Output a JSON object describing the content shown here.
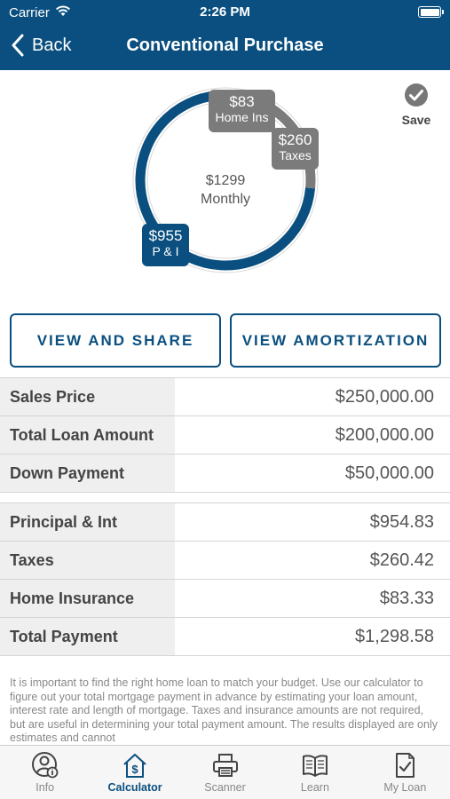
{
  "status_bar": {
    "carrier": "Carrier",
    "time": "2:26 PM"
  },
  "nav": {
    "back_label": "Back",
    "title": "Conventional Purchase"
  },
  "save": {
    "label": "Save"
  },
  "chart_data": {
    "type": "pie",
    "center": {
      "amount": "$1299",
      "label": "Monthly"
    },
    "slices": [
      {
        "label": "P & I",
        "amount": "$955",
        "value": 954.83,
        "color": "#0a4f7f"
      },
      {
        "label": "Taxes",
        "amount": "$260",
        "value": 260.42,
        "color": "#7b7b7b"
      },
      {
        "label": "Home Ins",
        "amount": "$83",
        "value": 83.33,
        "color": "#7b7b7b"
      }
    ]
  },
  "buttons": {
    "view_share": "VIEW AND SHARE",
    "view_amortization": "VIEW AMORTIZATION"
  },
  "loan_table": [
    {
      "label": "Sales Price",
      "value": "$250,000.00"
    },
    {
      "label": "Total Loan Amount",
      "value": "$200,000.00"
    },
    {
      "label": "Down Payment",
      "value": "$50,000.00"
    }
  ],
  "payment_table": [
    {
      "label": "Principal & Int",
      "value": "$954.83"
    },
    {
      "label": "Taxes",
      "value": "$260.42"
    },
    {
      "label": "Home Insurance",
      "value": "$83.33"
    },
    {
      "label": "Total Payment",
      "value": "$1,298.58"
    }
  ],
  "disclaimer": "It is important to find the right home loan to match your budget. Use our calculator to figure out your total mortgage payment in advance by estimating your loan amount, interest rate and length of mortgage. Taxes and insurance amounts are not required, but are useful in determining your total payment amount. The results displayed are only estimates and cannot",
  "tabs": [
    {
      "label": "Info",
      "icon": "info-person-icon"
    },
    {
      "label": "Calculator",
      "icon": "calculator-house-icon"
    },
    {
      "label": "Scanner",
      "icon": "printer-icon"
    },
    {
      "label": "Learn",
      "icon": "book-icon"
    },
    {
      "label": "My Loan",
      "icon": "checklist-icon"
    }
  ],
  "colors": {
    "brand": "#0a4f7f",
    "gray": "#7b7b7b",
    "label_bg": "#efefef"
  }
}
